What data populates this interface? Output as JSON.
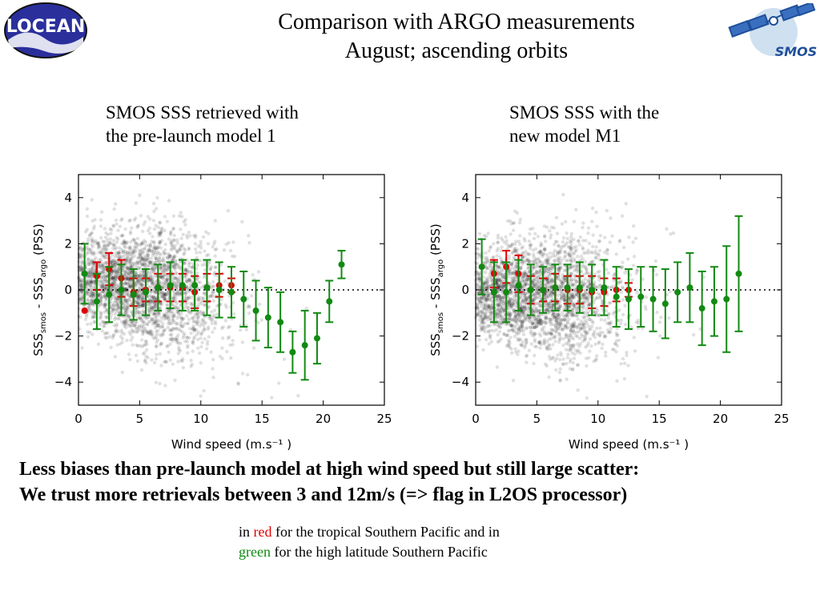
{
  "header": {
    "title_line1": "Comparison with ARGO measurements",
    "title_line2": "August; ascending orbits",
    "logo_left_text": "LOCEAN",
    "logo_right_text": "SMOS"
  },
  "panels": {
    "left_caption_line1": "SMOS SSS retrieved with",
    "left_caption_line2": "the pre-launch model 1",
    "right_caption_line1": "SMOS SSS with the",
    "right_caption_line2": "new model M1"
  },
  "conclusion": {
    "line1": "Less biases than pre-launch model at high wind speed but still large scatter:",
    "line2": "We trust more retrievals between 3 and 12m/s (=> flag in L2OS processor)"
  },
  "legend": {
    "in": "in",
    "red_word": "red",
    "red_text": "for the tropical Southern Pacific and in",
    "green_word": "green",
    "green_text": "for the high latitude Southern Pacific"
  },
  "colors": {
    "red": "#e00000",
    "green": "#128a12",
    "scatter": "#000000"
  },
  "chart_data": [
    {
      "type": "scatter",
      "xlabel": "Wind speed (m.s⁻¹ )",
      "ylabel": "SSS_smos - SSS_argo (PSS)",
      "xlim": [
        0,
        25
      ],
      "ylim": [
        -5,
        5
      ],
      "xticks": [
        "0",
        "5",
        "10",
        "15",
        "20",
        "25"
      ],
      "yticks": [
        "4",
        "2",
        "0",
        "−2",
        "−4"
      ],
      "reference_line_y": 0,
      "series": [
        {
          "color": "red",
          "x": [
            0.5,
            1.5,
            2.5,
            3.5,
            4.5,
            5.5,
            6.5,
            7.5,
            8.5,
            9.5,
            10.5,
            11.5,
            12.5
          ],
          "y": [
            -0.9,
            0.6,
            0.9,
            0.5,
            -0.1,
            0.0,
            0.1,
            0.1,
            0.1,
            -0.1,
            0.1,
            0.2,
            0.2
          ],
          "err": [
            0.0,
            0.6,
            0.7,
            0.8,
            0.6,
            0.5,
            0.6,
            0.6,
            0.6,
            0.7,
            0.6,
            0.5,
            0.3
          ]
        },
        {
          "color": "green",
          "x": [
            0.5,
            1.5,
            2.5,
            3.5,
            4.5,
            5.5,
            6.5,
            7.5,
            8.5,
            9.5,
            10.5,
            11.5,
            12.5,
            13.5,
            14.5,
            15.5,
            16.5,
            17.5,
            18.5,
            19.5,
            20.5,
            21.5
          ],
          "y": [
            0.7,
            -0.5,
            -0.2,
            0.0,
            -0.2,
            -0.1,
            0.1,
            0.2,
            0.2,
            0.2,
            0.1,
            0.0,
            -0.1,
            -0.4,
            -0.9,
            -1.2,
            -1.4,
            -2.7,
            -2.4,
            -2.1,
            -0.5,
            1.1
          ],
          "err": [
            1.3,
            1.2,
            1.2,
            1.1,
            1.1,
            1.0,
            1.0,
            1.0,
            1.1,
            1.1,
            1.2,
            1.2,
            1.1,
            1.2,
            1.3,
            1.3,
            1.3,
            0.9,
            1.5,
            1.1,
            0.9,
            0.6
          ]
        }
      ]
    },
    {
      "type": "scatter",
      "xlabel": "Wind speed (m.s⁻¹ )",
      "ylabel": "SSS_smos - SSS_argo (PSS)",
      "xlim": [
        0,
        25
      ],
      "ylim": [
        -5,
        5
      ],
      "xticks": [
        "0",
        "5",
        "10",
        "15",
        "20",
        "25"
      ],
      "yticks": [
        "4",
        "2",
        "0",
        "−2",
        "−4"
      ],
      "reference_line_y": 0,
      "series": [
        {
          "color": "red",
          "x": [
            1.5,
            2.5,
            3.5,
            4.5,
            5.5,
            6.5,
            7.5,
            8.5,
            9.5,
            10.5,
            11.5,
            12.5
          ],
          "y": [
            0.7,
            1.0,
            0.7,
            0.0,
            0.0,
            0.1,
            0.0,
            0.0,
            -0.1,
            -0.1,
            0.0,
            0.0
          ],
          "err": [
            0.6,
            0.7,
            0.8,
            0.6,
            0.5,
            0.6,
            0.6,
            0.6,
            0.7,
            0.6,
            0.5,
            0.3
          ]
        },
        {
          "color": "green",
          "x": [
            0.5,
            1.5,
            2.5,
            3.5,
            4.5,
            5.5,
            6.5,
            7.5,
            8.5,
            9.5,
            10.5,
            11.5,
            12.5,
            13.5,
            14.5,
            15.5,
            16.5,
            17.5,
            18.5,
            19.5,
            20.5,
            21.5
          ],
          "y": [
            1.0,
            -0.1,
            -0.1,
            0.2,
            0.0,
            0.0,
            0.1,
            0.1,
            0.1,
            0.0,
            0.1,
            -0.3,
            -0.4,
            -0.3,
            -0.4,
            -0.6,
            -0.1,
            0.1,
            -0.8,
            -0.5,
            -0.4,
            0.7
          ],
          "err": [
            1.2,
            1.3,
            1.3,
            1.1,
            1.1,
            1.0,
            1.0,
            1.0,
            1.1,
            1.1,
            1.2,
            1.3,
            1.3,
            1.3,
            1.4,
            1.5,
            1.3,
            1.5,
            1.6,
            1.5,
            2.3,
            2.5
          ]
        }
      ]
    }
  ]
}
